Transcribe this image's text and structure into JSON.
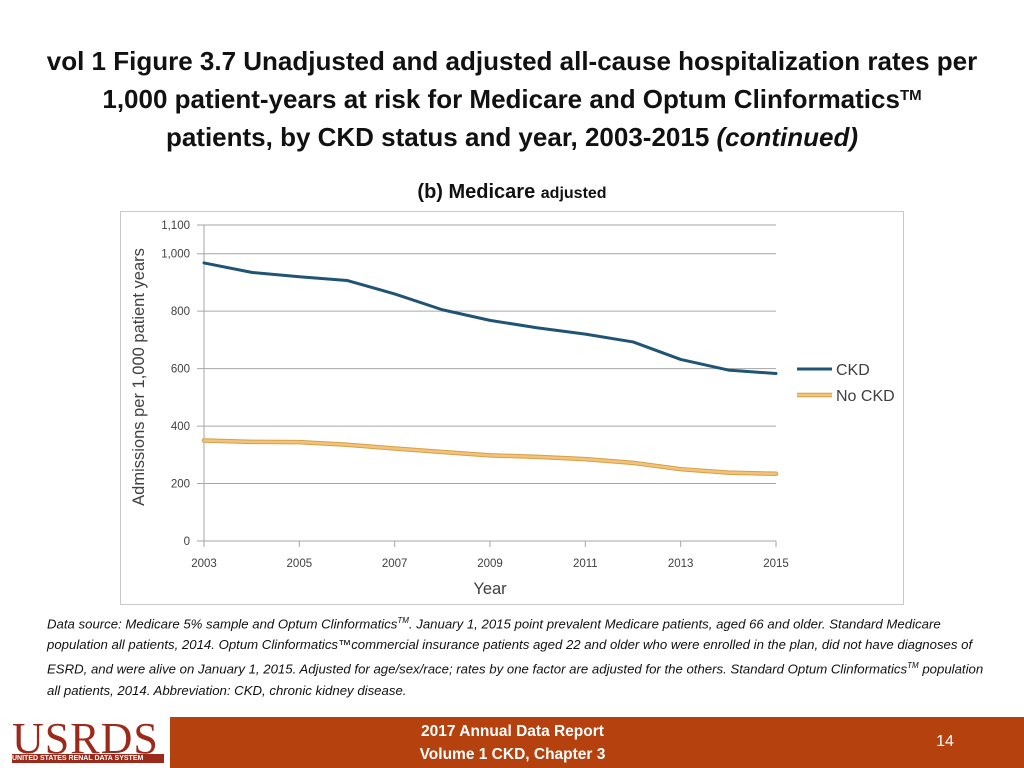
{
  "title": {
    "line1": "vol 1 Figure 3.7 Unadjusted and adjusted all-cause hospitalization rates per",
    "line2_pre": "1,000 patient-years at risk for Medicare and Optum Clinformatics",
    "line2_sup": "TM",
    "line3_pre": "patients, by CKD status and year, 2003-2015 ",
    "line3_italic": "(continued)"
  },
  "subtitle": {
    "main": "(b) Medicare",
    "small": "adjusted"
  },
  "chart_data": {
    "type": "line",
    "x": [
      2003,
      2004,
      2005,
      2006,
      2007,
      2008,
      2009,
      2010,
      2011,
      2012,
      2013,
      2014,
      2015
    ],
    "series": [
      {
        "name": "CKD",
        "color": "#1f5475",
        "values": [
          968,
          935,
          920,
          907,
          860,
          805,
          768,
          742,
          720,
          693,
          632,
          595,
          583
        ]
      },
      {
        "name": "No CKD",
        "color": "#f5c27a",
        "values": [
          350,
          345,
          344,
          335,
          322,
          310,
          298,
          293,
          285,
          272,
          250,
          238,
          234
        ]
      }
    ],
    "xlabel": "Year",
    "ylabel": "Admissions per 1,000 patient years",
    "ylim": [
      0,
      1100
    ],
    "yticks": [
      0,
      200,
      400,
      600,
      800,
      1000,
      1100
    ],
    "ytick_labels": [
      "0",
      "200",
      "400",
      "600",
      "800",
      "1,000",
      "1,100"
    ],
    "xticks": [
      2003,
      2005,
      2007,
      2009,
      2011,
      2013,
      2015
    ],
    "xtick_labels": [
      "2003",
      "2005",
      "2007",
      "2009",
      "2011",
      "2013",
      "2015"
    ],
    "grid": true,
    "legend": "right"
  },
  "source": {
    "p1": "Data source: Medicare 5% sample and Optum Clinformatics",
    "sup1": "TM",
    "p2": ". January 1, 2015 point prevalent Medicare patients, aged 66 and older. Standard Medicare population all patients, 2014. Optum Clinformatics™commercial insurance patients aged 22 and older who were enrolled in the plan, did not have diagnoses of ESRD, and were alive on January 1, 2015. Adjusted for age/sex/race; rates by one factor are adjusted for the others. Standard Optum Clinformatics",
    "sup2": "TM",
    "p3": " population all patients, 2014. Abbreviation: CKD, chronic kidney disease."
  },
  "footer": {
    "logo": "USRDS",
    "logo_sub": "UNITED STATES RENAL DATA SYSTEM",
    "report_line1": "2017 Annual Data Report",
    "report_line2": "Volume 1 CKD, Chapter 3",
    "page": "14"
  }
}
